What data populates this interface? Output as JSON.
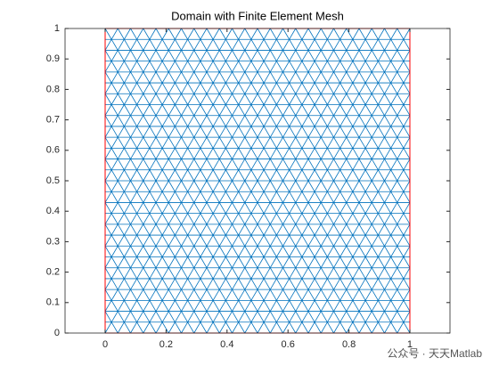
{
  "chart_data": {
    "type": "mesh",
    "title": "Domain with Finite Element Mesh",
    "xlim": [
      -0.1316,
      1.1316
    ],
    "ylim": [
      0,
      1
    ],
    "xticks": [
      0,
      0.2,
      0.4,
      0.6,
      0.8,
      1
    ],
    "yticks": [
      0,
      0.1,
      0.2,
      0.3,
      0.4,
      0.5,
      0.6,
      0.7,
      0.8,
      0.9,
      1
    ],
    "domain": {
      "x": [
        0,
        1
      ],
      "y": [
        0,
        1
      ],
      "color": "#ff0000"
    },
    "mesh_color": "#0072bd"
  },
  "watermark": "公众号 · 天天Matlab"
}
